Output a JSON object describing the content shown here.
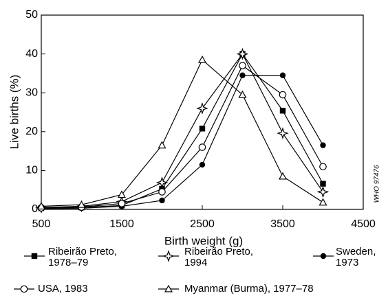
{
  "chart_data": {
    "type": "line",
    "x_label": "Birth weight (g)",
    "y_label": "Live births (%)",
    "annotation": "WHO 97476",
    "x": [
      500,
      1000,
      1500,
      2000,
      2500,
      3000,
      3500,
      4000
    ],
    "series": [
      {
        "name": "Ribeirão Preto, 1978–79",
        "color": "#000000",
        "marker": "square",
        "values": [
          0.3,
          0.5,
          1,
          5.3,
          20.8,
          40,
          25.4,
          6.6
        ]
      },
      {
        "name": "Ribeirão Preto, 1994",
        "color": "#000000",
        "marker": "star",
        "values": [
          0.5,
          0.8,
          2,
          6.9,
          26,
          40,
          19.6,
          4.5
        ]
      },
      {
        "name": "Sweden, 1973",
        "color": "#000000",
        "marker": "circle",
        "values": [
          0.2,
          0.3,
          0.8,
          2.3,
          11.5,
          34.5,
          34.5,
          16.5
        ]
      },
      {
        "name": "USA, 1983",
        "color": "#000000",
        "marker": "open-circle",
        "values": [
          0.4,
          0.6,
          1.5,
          4.5,
          16,
          37,
          29.5,
          11
        ]
      },
      {
        "name": "Myanmar (Burma), 1977–78",
        "color": "#000000",
        "marker": "triangle",
        "values": [
          0.8,
          1.2,
          3.8,
          16.5,
          38.5,
          29.5,
          8.5,
          1.8
        ]
      }
    ],
    "xlim": [
      500,
      4500
    ],
    "xticks": [
      500,
      1500,
      2500,
      3500,
      4500
    ],
    "ylim": [
      0,
      50
    ],
    "yticks": [
      0,
      10,
      20,
      30,
      40,
      50
    ]
  }
}
